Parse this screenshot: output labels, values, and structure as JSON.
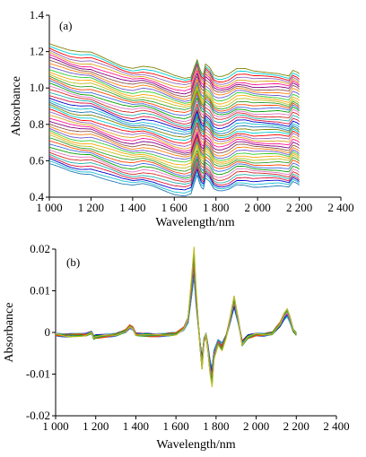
{
  "chart_data": [
    {
      "panel_label": "(a)",
      "type": "line",
      "xlabel": "Wavelength/nm",
      "ylabel": "Absorbance",
      "xlim": [
        1000,
        2400
      ],
      "ylim": [
        0.4,
        1.4
      ],
      "xticks": [
        1000,
        1200,
        1400,
        1600,
        1800,
        2000,
        2200,
        2400
      ],
      "xtick_labels": [
        "1 000",
        "1 200",
        "1 400",
        "1 600",
        "1 800",
        "2 000",
        "2 200",
        "2 400"
      ],
      "yticks": [
        0.4,
        0.6,
        0.8,
        1.0,
        1.2,
        1.4
      ],
      "ytick_labels": [
        "0.4",
        "0.6",
        "0.8",
        "1.0",
        "1.2",
        "1.4"
      ],
      "grid": false,
      "n_spectra": 48,
      "offset_range": [
        0.0,
        0.62
      ],
      "base_spectrum": {
        "x": [
          1000,
          1050,
          1100,
          1150,
          1200,
          1250,
          1300,
          1350,
          1400,
          1450,
          1500,
          1550,
          1600,
          1650,
          1680,
          1700,
          1710,
          1720,
          1730,
          1740,
          1750,
          1770,
          1790,
          1810,
          1830,
          1860,
          1900,
          1940,
          1980,
          2020,
          2060,
          2100,
          2150,
          2170,
          2190,
          2200
        ],
        "y": [
          0.58,
          0.56,
          0.54,
          0.53,
          0.53,
          0.51,
          0.49,
          0.47,
          0.46,
          0.47,
          0.46,
          0.44,
          0.42,
          0.41,
          0.42,
          0.49,
          0.52,
          0.48,
          0.45,
          0.44,
          0.5,
          0.48,
          0.44,
          0.43,
          0.43,
          0.44,
          0.47,
          0.47,
          0.46,
          0.46,
          0.46,
          0.46,
          0.45,
          0.48,
          0.47,
          0.46
        ]
      }
    },
    {
      "panel_label": "(b)",
      "type": "line",
      "xlabel": "Wavelength/nm",
      "ylabel": "Absorbance",
      "xlim": [
        1000,
        2400
      ],
      "ylim": [
        -0.02,
        0.02
      ],
      "xticks": [
        1000,
        1200,
        1400,
        1600,
        1800,
        2000,
        2200,
        2400
      ],
      "xtick_labels": [
        "1 000",
        "1 200",
        "1 400",
        "1 600",
        "1 800",
        "2 000",
        "2 200",
        "2 400"
      ],
      "yticks": [
        -0.02,
        -0.01,
        0,
        0.01,
        0.02
      ],
      "ytick_labels": [
        "-0.02",
        "-0.01",
        "0",
        "0.01",
        "0.02"
      ],
      "grid": false,
      "n_spectra": 12,
      "base_spectrum": {
        "x": [
          1000,
          1050,
          1100,
          1150,
          1180,
          1190,
          1200,
          1250,
          1300,
          1350,
          1370,
          1385,
          1400,
          1450,
          1500,
          1550,
          1600,
          1640,
          1660,
          1680,
          1690,
          1700,
          1720,
          1730,
          1740,
          1750,
          1760,
          1770,
          1780,
          1790,
          1810,
          1830,
          1850,
          1870,
          1890,
          1910,
          1930,
          1960,
          2000,
          2040,
          2080,
          2120,
          2140,
          2155,
          2170,
          2185,
          2200
        ],
        "y": [
          -0.0005,
          -0.0008,
          -0.0006,
          -0.0005,
          0.0,
          -0.0012,
          -0.001,
          -0.0008,
          -0.0006,
          0.0004,
          0.0014,
          0.001,
          -0.0004,
          -0.0006,
          -0.0007,
          -0.0006,
          -0.0003,
          0.001,
          0.003,
          0.012,
          0.017,
          0.009,
          -0.003,
          -0.0075,
          -0.002,
          -0.0005,
          -0.004,
          -0.0085,
          -0.011,
          -0.0055,
          -0.0025,
          -0.0035,
          -0.001,
          0.003,
          0.0075,
          0.003,
          -0.0025,
          -0.001,
          -0.0005,
          -0.0006,
          -0.0002,
          0.002,
          0.004,
          0.0049,
          0.003,
          0.0005,
          -0.0004
        ]
      }
    }
  ]
}
